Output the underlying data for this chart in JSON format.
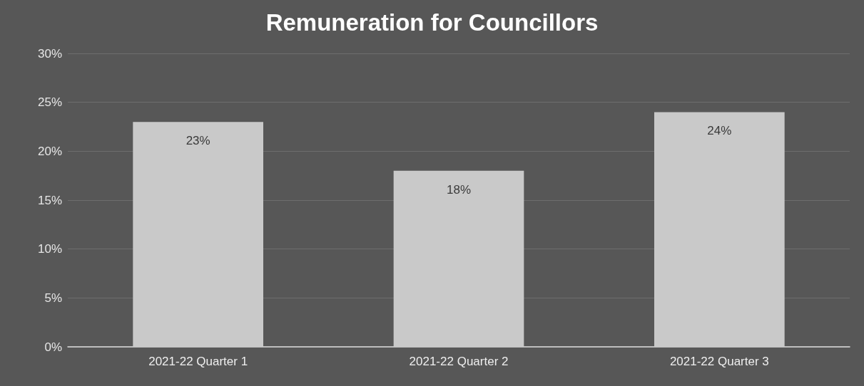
{
  "chart_data": {
    "type": "bar",
    "title": "Remuneration for Councillors",
    "categories": [
      "2021-22 Quarter 1",
      "2021-22 Quarter 2",
      "2021-22 Quarter 3"
    ],
    "values": [
      23,
      18,
      24
    ],
    "value_labels": [
      "23%",
      "18%",
      "24%"
    ],
    "color": "#c9c9c9",
    "ylim": [
      0,
      30
    ],
    "yticks": [
      {
        "value": 0,
        "label": "0%"
      },
      {
        "value": 5,
        "label": "5%"
      },
      {
        "value": 10,
        "label": "10%"
      },
      {
        "value": 15,
        "label": "15%"
      },
      {
        "value": 20,
        "label": "20%"
      },
      {
        "value": 25,
        "label": "25%"
      },
      {
        "value": 30,
        "label": "30%"
      }
    ],
    "grid": true
  }
}
